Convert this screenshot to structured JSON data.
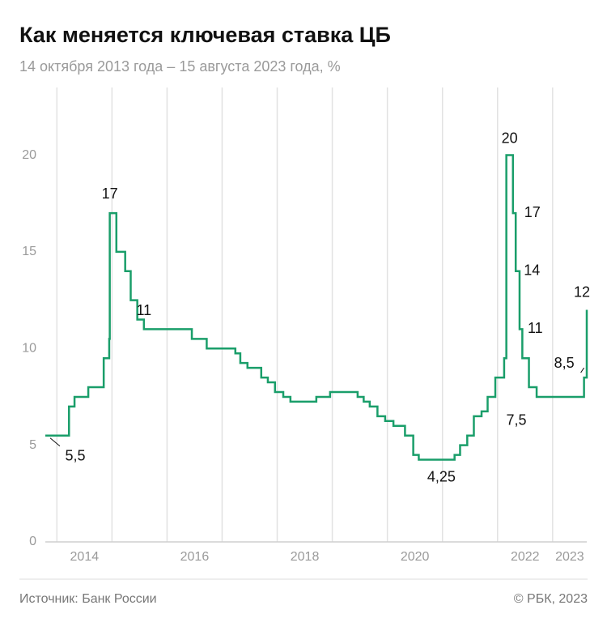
{
  "chart_data": {
    "type": "step-line",
    "title": "Как меняется ключевая ставка ЦБ",
    "subtitle": "14 октября 2013 года – 15 августа 2023 года, %",
    "source": "Источник: Банк России",
    "credit": "© РБК, 2023",
    "color": "#1a9e6a",
    "x": [
      2013.79,
      2014.22,
      2014.32,
      2014.57,
      2014.85,
      2014.95,
      2014.96,
      2015.08,
      2015.24,
      2015.34,
      2015.46,
      2015.58,
      2016.45,
      2016.72,
      2017.24,
      2017.33,
      2017.46,
      2017.71,
      2017.83,
      2017.96,
      2018.11,
      2018.24,
      2018.71,
      2018.96,
      2019.46,
      2019.57,
      2019.68,
      2019.82,
      2019.96,
      2020.11,
      2020.32,
      2020.47,
      2020.57,
      2021.22,
      2021.32,
      2021.45,
      2021.57,
      2021.71,
      2021.82,
      2021.96,
      2022.12,
      2022.16,
      2022.28,
      2022.33,
      2022.4,
      2022.45,
      2022.57,
      2022.71,
      2023.57,
      2023.62
    ],
    "values": [
      5.5,
      7,
      7.5,
      8,
      9.5,
      10.5,
      17,
      15,
      14,
      12.5,
      11.5,
      11,
      10.5,
      10,
      9.75,
      9.25,
      9,
      8.5,
      8.25,
      7.75,
      7.5,
      7.25,
      7.5,
      7.75,
      7.5,
      7.25,
      7,
      6.5,
      6.25,
      6,
      5.5,
      4.5,
      4.25,
      4.5,
      5,
      5.5,
      6.5,
      6.75,
      7.5,
      8.5,
      9.5,
      20,
      17,
      14,
      11,
      9.5,
      8,
      7.5,
      8.5,
      12
    ],
    "value_labels": [
      "5,5",
      null,
      null,
      null,
      null,
      null,
      "17",
      null,
      null,
      null,
      null,
      "11",
      null,
      null,
      null,
      null,
      null,
      null,
      null,
      null,
      null,
      null,
      null,
      null,
      null,
      null,
      null,
      null,
      null,
      null,
      null,
      null,
      "4,25",
      null,
      null,
      null,
      null,
      null,
      null,
      null,
      null,
      "20",
      "17",
      "14",
      "11",
      null,
      null,
      "7,5",
      "8,5",
      "12"
    ],
    "xlim": [
      2013.79,
      2023.62
    ],
    "xticks": [
      2014,
      2016,
      2018,
      2020,
      2022,
      2023
    ],
    "xgrid": [
      2014,
      2015,
      2016,
      2017,
      2018,
      2019,
      2020,
      2021,
      2022,
      2023
    ],
    "ylim": [
      0,
      23.5
    ],
    "yticks": [
      0,
      5,
      10,
      15,
      20
    ]
  }
}
